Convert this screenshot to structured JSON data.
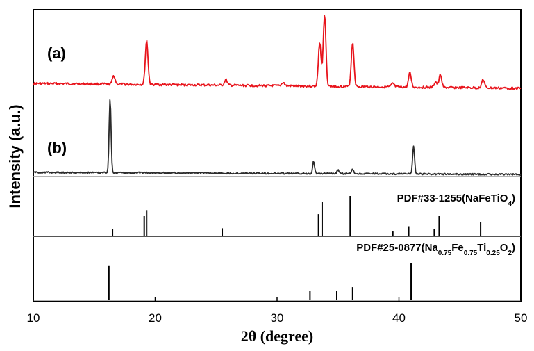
{
  "chart_data": {
    "type": "line",
    "xlabel": "2θ (degree)",
    "ylabel": "Intensity (a.u.)",
    "xlim": [
      10,
      50
    ],
    "xticks": [
      10,
      20,
      30,
      40,
      50
    ],
    "x_tick_labels": [
      "10",
      "20",
      "30",
      "40",
      "50"
    ],
    "grid": false,
    "series": [
      {
        "name": "(a)",
        "color": "#e8141c",
        "kind": "pattern",
        "peaks": [
          [
            16.6,
            0.12
          ],
          [
            19.3,
            0.62
          ],
          [
            25.8,
            0.08
          ],
          [
            30.5,
            0.05
          ],
          [
            33.5,
            0.62
          ],
          [
            33.9,
            1.0
          ],
          [
            36.2,
            0.62
          ],
          [
            39.5,
            0.05
          ],
          [
            40.9,
            0.2
          ],
          [
            43.0,
            0.08
          ],
          [
            43.4,
            0.18
          ],
          [
            46.9,
            0.12
          ]
        ]
      },
      {
        "name": "(b)",
        "color": "#2b2b2b",
        "kind": "pattern",
        "peaks": [
          [
            16.3,
            1.0
          ],
          [
            33.0,
            0.17
          ],
          [
            35.0,
            0.05
          ],
          [
            36.2,
            0.06
          ],
          [
            41.2,
            0.38
          ]
        ]
      }
    ],
    "references": [
      {
        "label_prefix": "PDF#33-1255(NaFeTiO",
        "label_sub": "4",
        "label_suffix": ")",
        "sticks": [
          [
            16.5,
            0.18
          ],
          [
            19.1,
            0.5
          ],
          [
            19.3,
            0.65
          ],
          [
            25.5,
            0.2
          ],
          [
            33.4,
            0.55
          ],
          [
            33.7,
            0.85
          ],
          [
            36.0,
            1.0
          ],
          [
            39.5,
            0.12
          ],
          [
            40.8,
            0.25
          ],
          [
            42.9,
            0.18
          ],
          [
            43.3,
            0.5
          ],
          [
            46.7,
            0.35
          ]
        ]
      },
      {
        "label_prefix": "PDF#25-0877(Na",
        "label_parts": [
          [
            "0.75",
            "Fe"
          ],
          [
            "0.75",
            "Ti"
          ],
          [
            "0.25",
            "O"
          ],
          [
            "2",
            ")"
          ]
        ],
        "sticks": [
          [
            16.2,
            0.93
          ],
          [
            32.7,
            0.25
          ],
          [
            34.9,
            0.25
          ],
          [
            36.2,
            0.35
          ],
          [
            41.0,
            1.0
          ]
        ]
      }
    ]
  }
}
